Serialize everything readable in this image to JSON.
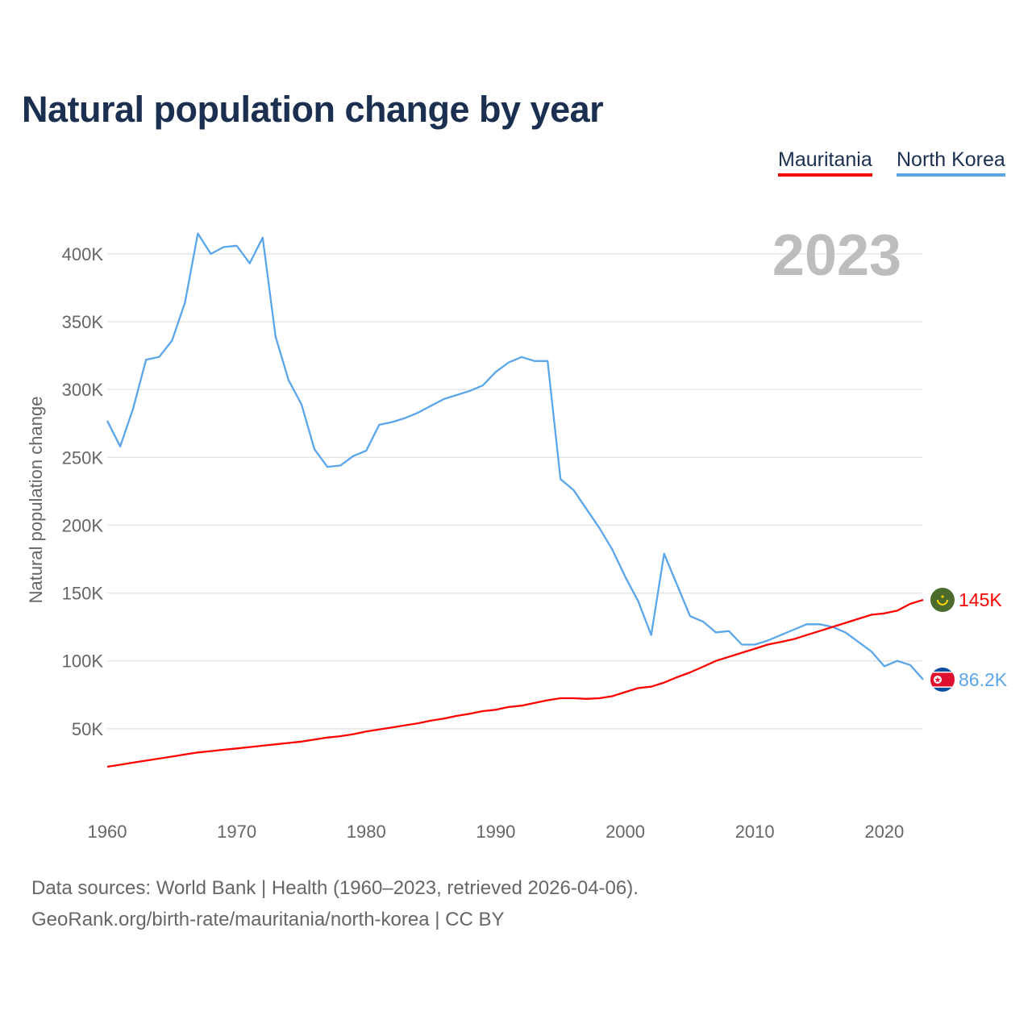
{
  "title": "Natural population change by year",
  "footer": {
    "line1": "Data sources: World Bank | Health (1960–2023, retrieved 2026-04-06).",
    "line2": "GeoRank.org/birth-rate/mauritania/north-korea | CC BY"
  },
  "chart_data": {
    "type": "line",
    "title": "Natural population change by year",
    "xlabel": "",
    "ylabel": "Natural population change",
    "year_label": "2023",
    "xlim": [
      1960,
      2023
    ],
    "ylim": [
      0,
      420000
    ],
    "x_ticks": [
      1960,
      1970,
      1980,
      1990,
      2000,
      2010,
      2020
    ],
    "y_ticks": [
      50000,
      100000,
      150000,
      200000,
      250000,
      300000,
      350000,
      400000
    ],
    "y_tick_labels": [
      "50K",
      "100K",
      "150K",
      "200K",
      "250K",
      "300K",
      "350K",
      "400K"
    ],
    "grid": true,
    "legend_position": "top-right",
    "x": [
      1960,
      1961,
      1962,
      1963,
      1964,
      1965,
      1966,
      1967,
      1968,
      1969,
      1970,
      1971,
      1972,
      1973,
      1974,
      1975,
      1976,
      1977,
      1978,
      1979,
      1980,
      1981,
      1982,
      1983,
      1984,
      1985,
      1986,
      1987,
      1988,
      1989,
      1990,
      1991,
      1992,
      1993,
      1994,
      1995,
      1996,
      1997,
      1998,
      1999,
      2000,
      2001,
      2002,
      2003,
      2004,
      2005,
      2006,
      2007,
      2008,
      2009,
      2010,
      2011,
      2012,
      2013,
      2014,
      2015,
      2016,
      2017,
      2018,
      2019,
      2020,
      2021,
      2022,
      2023
    ],
    "series": [
      {
        "name": "Mauritania",
        "color": "#ff0000",
        "end_label": "145K",
        "values": [
          22000,
          23500,
          25000,
          26500,
          28000,
          29500,
          31000,
          32500,
          33500,
          34500,
          35500,
          36500,
          37500,
          38500,
          39500,
          40500,
          42000,
          43500,
          44500,
          46000,
          48000,
          49500,
          51000,
          52500,
          54000,
          56000,
          57500,
          59500,
          61000,
          63000,
          64000,
          66000,
          67000,
          69000,
          71000,
          72500,
          72500,
          72000,
          72500,
          74000,
          77000,
          80000,
          81000,
          84000,
          88000,
          91500,
          95700,
          100000,
          103000,
          106000,
          109000,
          112000,
          114000,
          116000,
          119000,
          122000,
          125000,
          128000,
          131000,
          134000,
          135000,
          137000,
          142000,
          145000
        ]
      },
      {
        "name": "North Korea",
        "color": "#5ba6ea",
        "end_label": "86.2K",
        "values": [
          277000,
          258000,
          286000,
          322000,
          324000,
          336000,
          364000,
          415000,
          400000,
          405000,
          406000,
          393000,
          412000,
          339000,
          307000,
          289000,
          256000,
          243000,
          244000,
          251000,
          255000,
          274000,
          276000,
          279000,
          283000,
          288000,
          293000,
          296000,
          299000,
          303000,
          313000,
          320000,
          324000,
          321000,
          321000,
          234000,
          226000,
          212000,
          198000,
          182000,
          162000,
          144000,
          119000,
          179000,
          156000,
          133000,
          129000,
          121000,
          122000,
          112000,
          112000,
          115000,
          119000,
          123000,
          127000,
          127000,
          125000,
          121000,
          114000,
          107000,
          96000,
          100000,
          97000,
          86200
        ]
      }
    ]
  }
}
